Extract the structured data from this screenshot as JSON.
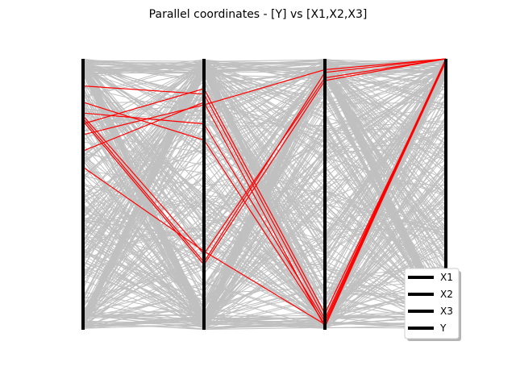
{
  "chart_data": {
    "type": "parallel_coordinates",
    "title": "Parallel coordinates - [Y] vs [X1,X2,X3]",
    "axes": [
      "X1",
      "X2",
      "X3",
      "Y"
    ],
    "ylim": [
      0,
      1
    ],
    "grid": false,
    "legend": {
      "placement": "lower-right",
      "entries": [
        "X1",
        "X2",
        "X3",
        "Y"
      ]
    },
    "colors": {
      "background_lines": "#c0c0c0",
      "highlight_lines": "#ff0000",
      "axis": "#000000"
    },
    "highlighted_lines": [
      [
        0.9,
        0.87,
        0.04,
        1.0
      ],
      [
        0.84,
        0.7,
        0.02,
        0.99
      ],
      [
        0.8,
        0.76,
        0.03,
        1.0
      ],
      [
        0.79,
        0.28,
        0.93,
        1.0
      ],
      [
        0.78,
        0.25,
        0.95,
        1.0
      ],
      [
        0.77,
        0.24,
        0.92,
        1.0
      ],
      [
        0.72,
        0.83,
        0.96,
        1.0
      ],
      [
        0.66,
        0.84,
        0.01,
        1.0
      ],
      [
        0.6,
        0.29,
        0.02,
        1.0
      ],
      [
        0.76,
        0.89,
        0.06,
        0.99
      ]
    ],
    "background_line_count": 400
  }
}
